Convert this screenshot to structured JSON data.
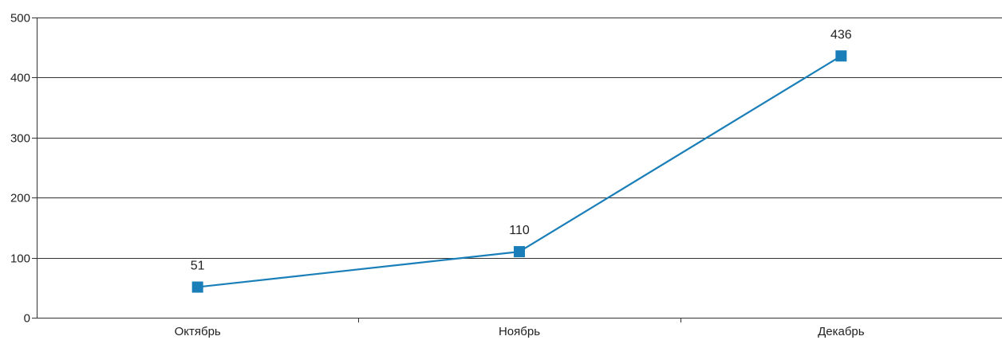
{
  "chart_data": {
    "type": "line",
    "categories": [
      "Октябрь",
      "Ноябрь",
      "Декабрь"
    ],
    "series": [
      {
        "values": [
          51,
          110,
          436
        ],
        "color": "#1a7fb8",
        "marker": "square"
      }
    ],
    "data_labels": [
      "51",
      "110",
      "436"
    ],
    "yticks": [
      0,
      100,
      200,
      300,
      400,
      500
    ],
    "ylim": [
      0,
      500
    ],
    "grid": true,
    "legend": "none",
    "title": "",
    "xlabel": "",
    "ylabel": ""
  }
}
